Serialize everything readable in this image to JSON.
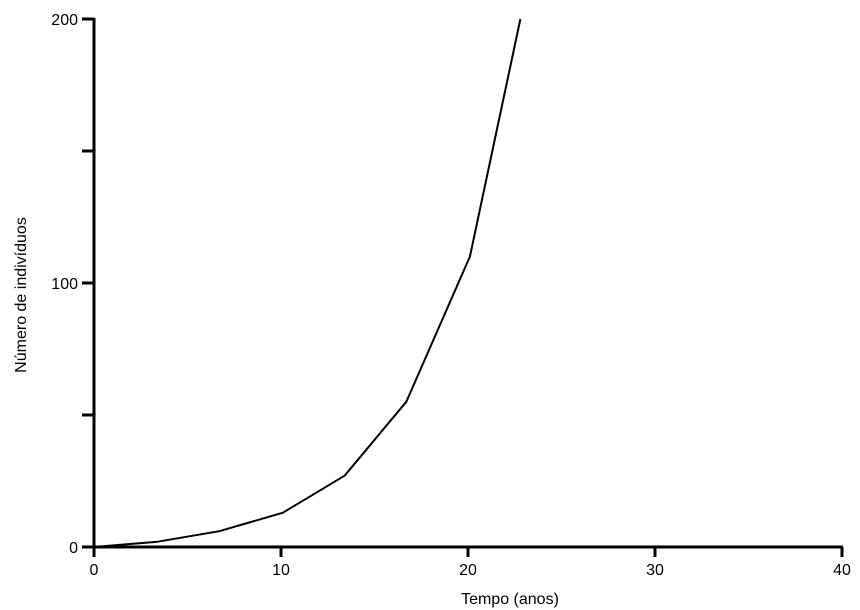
{
  "chart_data": {
    "type": "line",
    "title": "",
    "xlabel": "Tempo (anos)",
    "ylabel": "Número de indivíduos",
    "xlim": [
      0,
      40
    ],
    "ylim": [
      0,
      200
    ],
    "x_ticks": [
      0,
      10,
      20,
      30,
      40
    ],
    "x_tick_labels": [
      "0",
      "10",
      "20",
      "30",
      "40"
    ],
    "y_ticks": [
      0,
      50,
      100,
      150,
      200
    ],
    "y_tick_labels": [
      "0",
      "",
      "100",
      "",
      "200"
    ],
    "grid": false,
    "legend": "none",
    "line_color": "#000000",
    "series": [
      {
        "x": [
          0,
          3.4,
          6.7,
          10.1,
          13.4,
          16.7,
          20.1,
          22.8
        ],
        "values": [
          0,
          2,
          6,
          13,
          27,
          55,
          110,
          200
        ]
      }
    ]
  }
}
